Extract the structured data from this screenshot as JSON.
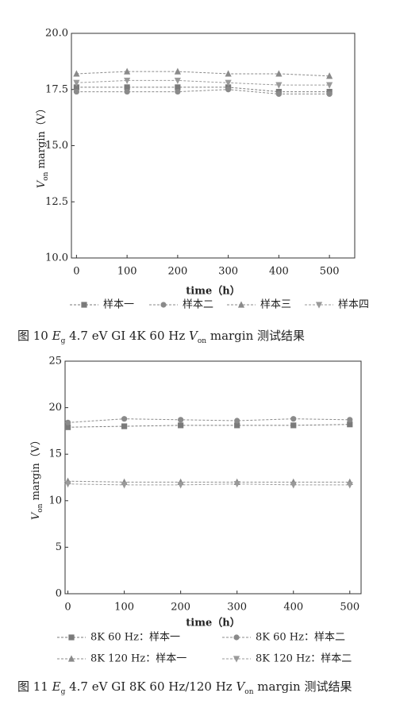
{
  "chart_data": [
    {
      "type": "line",
      "ylabel": [
        {
          "text": "V",
          "style": "italic"
        },
        {
          "text": "on",
          "style": "sub"
        },
        {
          "text": " margin（V）",
          "style": "normal"
        }
      ],
      "xlabel": "time（h）",
      "x": [
        0,
        100,
        200,
        300,
        400,
        500
      ],
      "xlim": [
        -10,
        550
      ],
      "xticks": [
        0,
        100,
        200,
        300,
        400,
        500
      ],
      "ylim": [
        10,
        20
      ],
      "yticks": [
        {
          "value": 10,
          "label": "10.0"
        },
        {
          "value": 12.5,
          "label": "12.5"
        },
        {
          "value": 15,
          "label": "15.0"
        },
        {
          "value": 17.5,
          "label": "17.5"
        },
        {
          "value": 20,
          "label": "20.0"
        }
      ],
      "series": [
        {
          "name": "样本一",
          "color": "#7a7a7a",
          "marker": "square",
          "values": [
            17.6,
            17.6,
            17.6,
            17.6,
            17.4,
            17.4
          ]
        },
        {
          "name": "样本二",
          "color": "#8a8a8a",
          "marker": "circle",
          "values": [
            17.4,
            17.4,
            17.4,
            17.5,
            17.3,
            17.3
          ]
        },
        {
          "name": "样本三",
          "color": "#8a8a8a",
          "marker": "triangle-up",
          "values": [
            18.2,
            18.3,
            18.3,
            18.2,
            18.2,
            18.1
          ]
        },
        {
          "name": "样本四",
          "color": "#9a9a9a",
          "marker": "triangle-down",
          "values": [
            17.8,
            17.9,
            17.9,
            17.8,
            17.7,
            17.7
          ]
        }
      ],
      "caption": [
        {
          "text": "图 10  ",
          "style": "normal"
        },
        {
          "text": "E",
          "style": "italic"
        },
        {
          "text": "g",
          "style": "sub"
        },
        {
          "text": " 4.7 eV GI 4K 60 Hz ",
          "style": "normal"
        },
        {
          "text": "V",
          "style": "italic"
        },
        {
          "text": "on",
          "style": "sub"
        },
        {
          "text": " margin 测试结果",
          "style": "normal"
        }
      ]
    },
    {
      "type": "line",
      "ylabel": [
        {
          "text": "V",
          "style": "italic"
        },
        {
          "text": "on",
          "style": "sub"
        },
        {
          "text": " margin（V）",
          "style": "normal"
        }
      ],
      "xlabel": "time（h）",
      "x": [
        0,
        100,
        200,
        300,
        400,
        500
      ],
      "xlim": [
        -5,
        520
      ],
      "xticks": [
        0,
        100,
        200,
        300,
        400,
        500
      ],
      "ylim": [
        0,
        25
      ],
      "yticks": [
        0,
        5,
        10,
        15,
        20,
        25
      ],
      "series": [
        {
          "name": "8K 60 Hz：样本一",
          "color": "#7a7a7a",
          "marker": "square",
          "values": [
            17.9,
            18.0,
            18.1,
            18.1,
            18.1,
            18.2
          ]
        },
        {
          "name": "8K 60 Hz：样本二",
          "color": "#8a8a8a",
          "marker": "circle",
          "values": [
            18.4,
            18.8,
            18.7,
            18.6,
            18.8,
            18.7
          ]
        },
        {
          "name": "8K 120 Hz：样本一",
          "color": "#8a8a8a",
          "marker": "triangle-up",
          "values": [
            12.1,
            12.0,
            12.0,
            12.0,
            12.0,
            12.0
          ]
        },
        {
          "name": "8K 120 Hz：样本二",
          "color": "#9a9a9a",
          "marker": "triangle-down",
          "values": [
            11.8,
            11.7,
            11.7,
            11.8,
            11.7,
            11.7
          ]
        }
      ],
      "caption": [
        {
          "text": "图 11  ",
          "style": "normal"
        },
        {
          "text": "E",
          "style": "italic"
        },
        {
          "text": "g",
          "style": "sub"
        },
        {
          "text": " 4.7 eV GI 8K 60 Hz/120 Hz ",
          "style": "normal"
        },
        {
          "text": "V",
          "style": "italic"
        },
        {
          "text": "on",
          "style": "sub"
        },
        {
          "text": " margin 测试结果",
          "style": "normal"
        }
      ]
    }
  ]
}
